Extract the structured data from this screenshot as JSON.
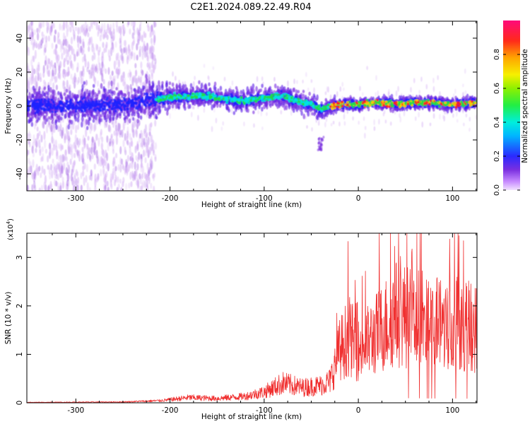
{
  "figure_title": "C2E1.2024.089.22.49.R04",
  "colors": {
    "snr_line": "#f03030",
    "spec_low": "#d7b4f5",
    "spec_mid": "#7a2fe0",
    "spec_high": "#1f22ff",
    "ridge_cyan": "#00e0e8",
    "ridge_green": "#22dd44",
    "ridge_red": "#ff2020"
  },
  "chart_data": [
    {
      "type": "heatmap",
      "title": "",
      "xlabel": "Height of straight line (km)",
      "ylabel": "Frequency (Hz)",
      "xlim": [
        -352,
        126
      ],
      "ylim": [
        -50,
        50
      ],
      "xticks": [
        "-300",
        "-200",
        "-100",
        "0",
        "100"
      ],
      "xtick_values": [
        -300,
        -200,
        -100,
        0,
        100
      ],
      "yticks": [
        "40",
        "20",
        "0",
        "-20",
        "-40"
      ],
      "ytick_values": [
        40,
        20,
        0,
        -20,
        -40
      ],
      "ridge": {
        "x": [
          -352,
          -300,
          -250,
          -215,
          -200,
          -180,
          -160,
          -140,
          -120,
          -100,
          -80,
          -70,
          -60,
          -50,
          -40,
          -30,
          -20,
          0,
          20,
          40,
          60,
          80,
          100,
          126
        ],
        "y": [
          0,
          0,
          1,
          4,
          5,
          6,
          6,
          4,
          3,
          5,
          6,
          4,
          2,
          1,
          -2,
          0,
          1,
          1,
          2,
          1,
          2,
          2,
          1,
          2
        ]
      },
      "colorbar": {
        "label": "Normalized spectral amplitude",
        "range": [
          0,
          1
        ],
        "ticks": [
          "0.0",
          "0.2",
          "0.4",
          "0.6",
          "0.8"
        ],
        "tick_values": [
          0.0,
          0.2,
          0.4,
          0.6,
          0.8
        ]
      }
    },
    {
      "type": "line",
      "title": "",
      "xlabel": "Height of straight line (km)",
      "ylabel": "SNR (10 * v/v)",
      "scale_label": "(x10",
      "scale_exp": "4",
      "xlim": [
        -352,
        126
      ],
      "ylim": [
        0,
        3.5
      ],
      "xticks": [
        "-300",
        "-200",
        "-100",
        "0",
        "100"
      ],
      "xtick_values": [
        -300,
        -200,
        -100,
        0,
        100
      ],
      "yticks": [
        "0",
        "1",
        "2",
        "3"
      ],
      "ytick_values": [
        0,
        1,
        2,
        3
      ],
      "envelope": {
        "x": [
          -352,
          -250,
          -210,
          -180,
          -150,
          -120,
          -100,
          -80,
          -60,
          -40,
          -30,
          -20,
          -10,
          0,
          20,
          40,
          60,
          80,
          100,
          126
        ],
        "y": [
          0.01,
          0.02,
          0.05,
          0.12,
          0.1,
          0.15,
          0.25,
          0.45,
          0.35,
          0.4,
          0.5,
          1.2,
          1.55,
          1.2,
          1.6,
          2.05,
          1.95,
          1.85,
          1.9,
          1.7
        ]
      }
    }
  ]
}
